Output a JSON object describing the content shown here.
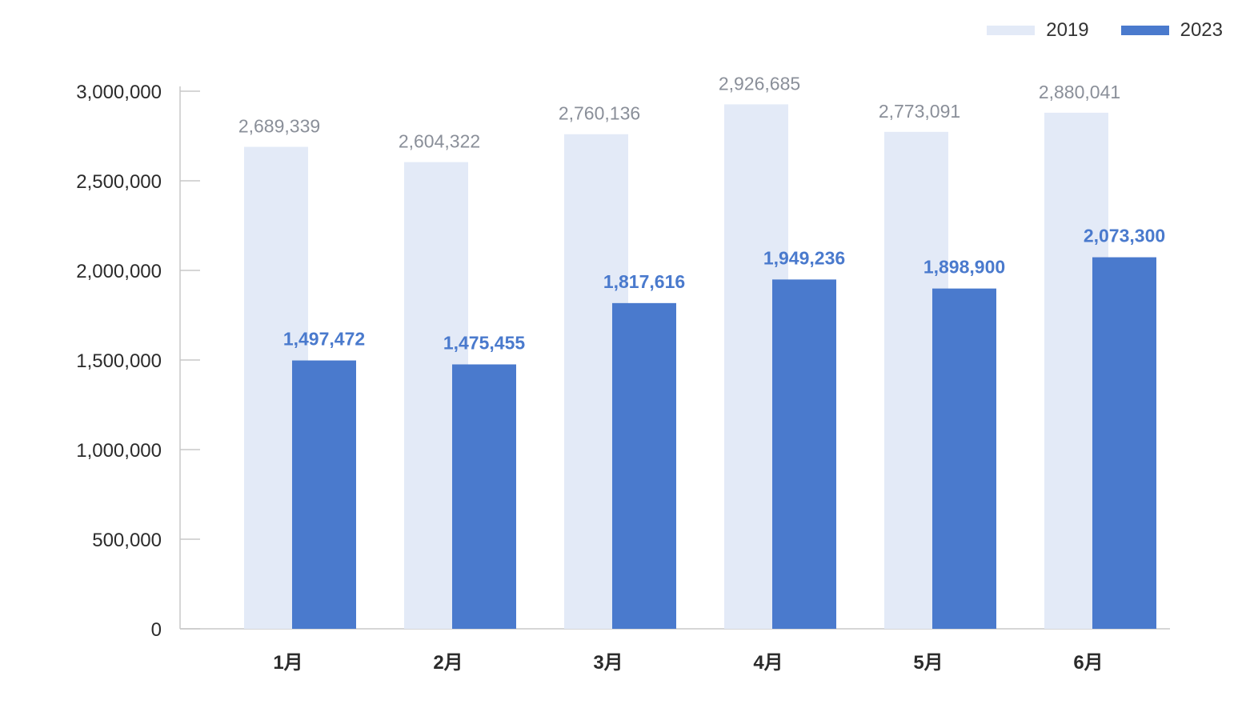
{
  "colors": {
    "series_2019": "#e3eaf7",
    "series_2023": "#4a7acd",
    "label_2019": "#8a8f99",
    "label_2023": "#4a7acd",
    "axis": "#c8c8c8",
    "text": "#2b2b2b"
  },
  "legend": {
    "items": [
      {
        "name": "2019"
      },
      {
        "name": "2023"
      }
    ],
    "placement": "top-right"
  },
  "chart_data": {
    "type": "bar",
    "categories": [
      "1月",
      "2月",
      "3月",
      "4月",
      "5月",
      "6月"
    ],
    "series": [
      {
        "name": "2019",
        "values": [
          2689339,
          2604322,
          2760136,
          2926685,
          2773091,
          2880041
        ],
        "labels": [
          "2,689,339",
          "2,604,322",
          "2,760,136",
          "2,926,685",
          "2,773,091",
          "2,880,041"
        ]
      },
      {
        "name": "2023",
        "values": [
          1497472,
          1475455,
          1817616,
          1949236,
          1898900,
          2073300
        ],
        "labels": [
          "1,497,472",
          "1,475,455",
          "1,817,616",
          "1,949,236",
          "1,898,900",
          "2,073,300"
        ]
      }
    ],
    "yticks": [
      0,
      500000,
      1000000,
      1500000,
      2000000,
      2500000,
      3000000
    ],
    "ytick_labels": [
      "0",
      "500,000",
      "1,000,000",
      "1,500,000",
      "2,000,000",
      "2,500,000",
      "3,000,000"
    ],
    "ylim": [
      0,
      3000000
    ],
    "title": "",
    "xlabel": "",
    "ylabel": "",
    "grid": false,
    "legend_position": "top-right"
  }
}
